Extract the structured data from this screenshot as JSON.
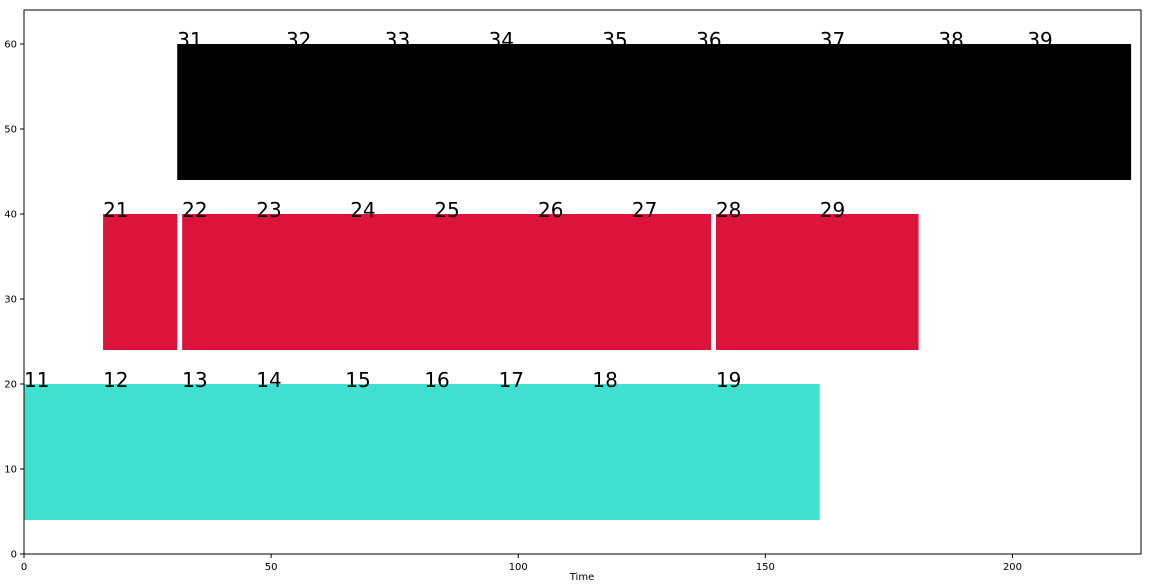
{
  "chart_data": {
    "type": "bar",
    "orientation": "horizontal-timeline",
    "xlabel": "Time",
    "ylabel": "",
    "xlim": [
      0,
      226
    ],
    "ylim": [
      0,
      64
    ],
    "xticks": [
      0,
      50,
      100,
      150,
      200
    ],
    "yticks": [
      0,
      10,
      20,
      30,
      40,
      50,
      60
    ],
    "grid": false,
    "colors": {
      "row1": "#40E0D0",
      "row2": "#DC143C",
      "row3": "#000000"
    },
    "segments": [
      {
        "row": 1,
        "start": 0,
        "end": 161,
        "y0": 4,
        "y1": 20,
        "color": "#40E0D0"
      },
      {
        "row": 2,
        "start": 16,
        "end": 31,
        "y0": 24,
        "y1": 40,
        "color": "#DC143C"
      },
      {
        "row": 2,
        "start": 32,
        "end": 139,
        "y0": 24,
        "y1": 40,
        "color": "#DC143C"
      },
      {
        "row": 2,
        "start": 140,
        "end": 181,
        "y0": 24,
        "y1": 40,
        "color": "#DC143C"
      },
      {
        "row": 3,
        "start": 31,
        "end": 224,
        "y0": 44,
        "y1": 60,
        "color": "#000000"
      }
    ],
    "labels": [
      {
        "text": "11",
        "x": 0,
        "y": 20
      },
      {
        "text": "12",
        "x": 16,
        "y": 20
      },
      {
        "text": "13",
        "x": 32,
        "y": 20
      },
      {
        "text": "14",
        "x": 47,
        "y": 20
      },
      {
        "text": "15",
        "x": 65,
        "y": 20
      },
      {
        "text": "16",
        "x": 81,
        "y": 20
      },
      {
        "text": "17",
        "x": 96,
        "y": 20
      },
      {
        "text": "18",
        "x": 115,
        "y": 20
      },
      {
        "text": "19",
        "x": 140,
        "y": 20
      },
      {
        "text": "21",
        "x": 16,
        "y": 40
      },
      {
        "text": "22",
        "x": 32,
        "y": 40
      },
      {
        "text": "23",
        "x": 47,
        "y": 40
      },
      {
        "text": "24",
        "x": 66,
        "y": 40
      },
      {
        "text": "25",
        "x": 83,
        "y": 40
      },
      {
        "text": "26",
        "x": 104,
        "y": 40
      },
      {
        "text": "27",
        "x": 123,
        "y": 40
      },
      {
        "text": "28",
        "x": 140,
        "y": 40
      },
      {
        "text": "29",
        "x": 161,
        "y": 40
      },
      {
        "text": "31",
        "x": 31,
        "y": 60
      },
      {
        "text": "32",
        "x": 53,
        "y": 60
      },
      {
        "text": "33",
        "x": 73,
        "y": 60
      },
      {
        "text": "34",
        "x": 94,
        "y": 60
      },
      {
        "text": "35",
        "x": 117,
        "y": 60
      },
      {
        "text": "36",
        "x": 136,
        "y": 60
      },
      {
        "text": "37",
        "x": 161,
        "y": 60
      },
      {
        "text": "38",
        "x": 185,
        "y": 60
      },
      {
        "text": "39",
        "x": 203,
        "y": 60
      }
    ]
  }
}
